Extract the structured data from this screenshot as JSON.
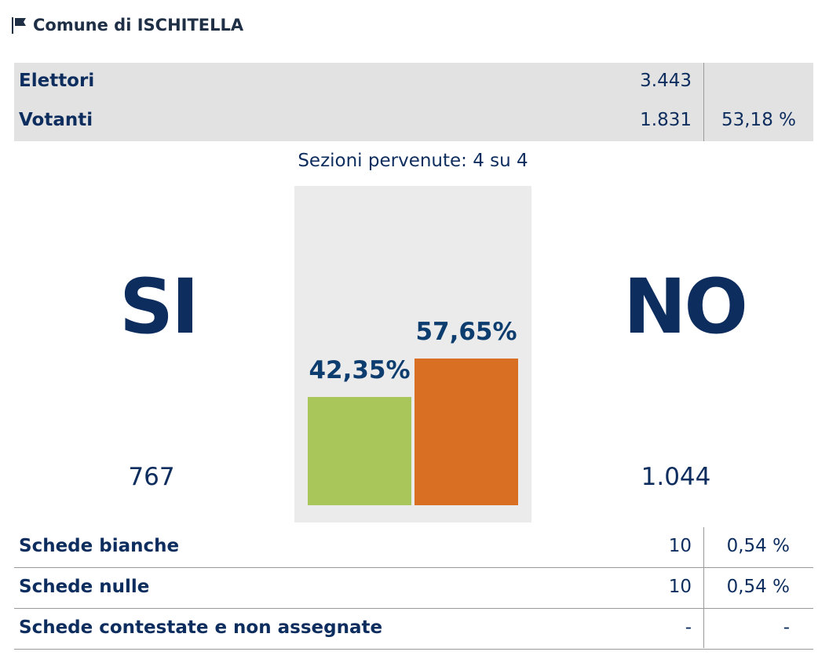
{
  "header": {
    "title": "Comune di ISCHITELLA",
    "icon": "flag-icon"
  },
  "summary": {
    "rows": [
      {
        "label": "Elettori",
        "value": "3.443",
        "pct": ""
      },
      {
        "label": "Votanti",
        "value": "1.831",
        "pct": "53,18 %"
      }
    ]
  },
  "sezioni": "Sezioni pervenute: 4 su 4",
  "results": {
    "si": {
      "label": "SI",
      "count": "767",
      "pct_label": "42,35%",
      "pct": 42.35,
      "color": "#a8c65a"
    },
    "no": {
      "label": "NO",
      "count": "1.044",
      "pct_label": "57,65%",
      "pct": 57.65,
      "color": "#d86f22"
    }
  },
  "chart_data": {
    "type": "bar",
    "categories": [
      "SI",
      "NO"
    ],
    "values": [
      42.35,
      57.65
    ],
    "title": "",
    "xlabel": "",
    "ylabel": "",
    "ylim": [
      0,
      100
    ]
  },
  "schede": {
    "rows": [
      {
        "label": "Schede bianche",
        "value": "10",
        "pct": "0,54 %"
      },
      {
        "label": "Schede nulle",
        "value": "10",
        "pct": "0,54 %"
      },
      {
        "label": "Schede contestate e non assegnate",
        "value": "-",
        "pct": "-"
      }
    ]
  }
}
